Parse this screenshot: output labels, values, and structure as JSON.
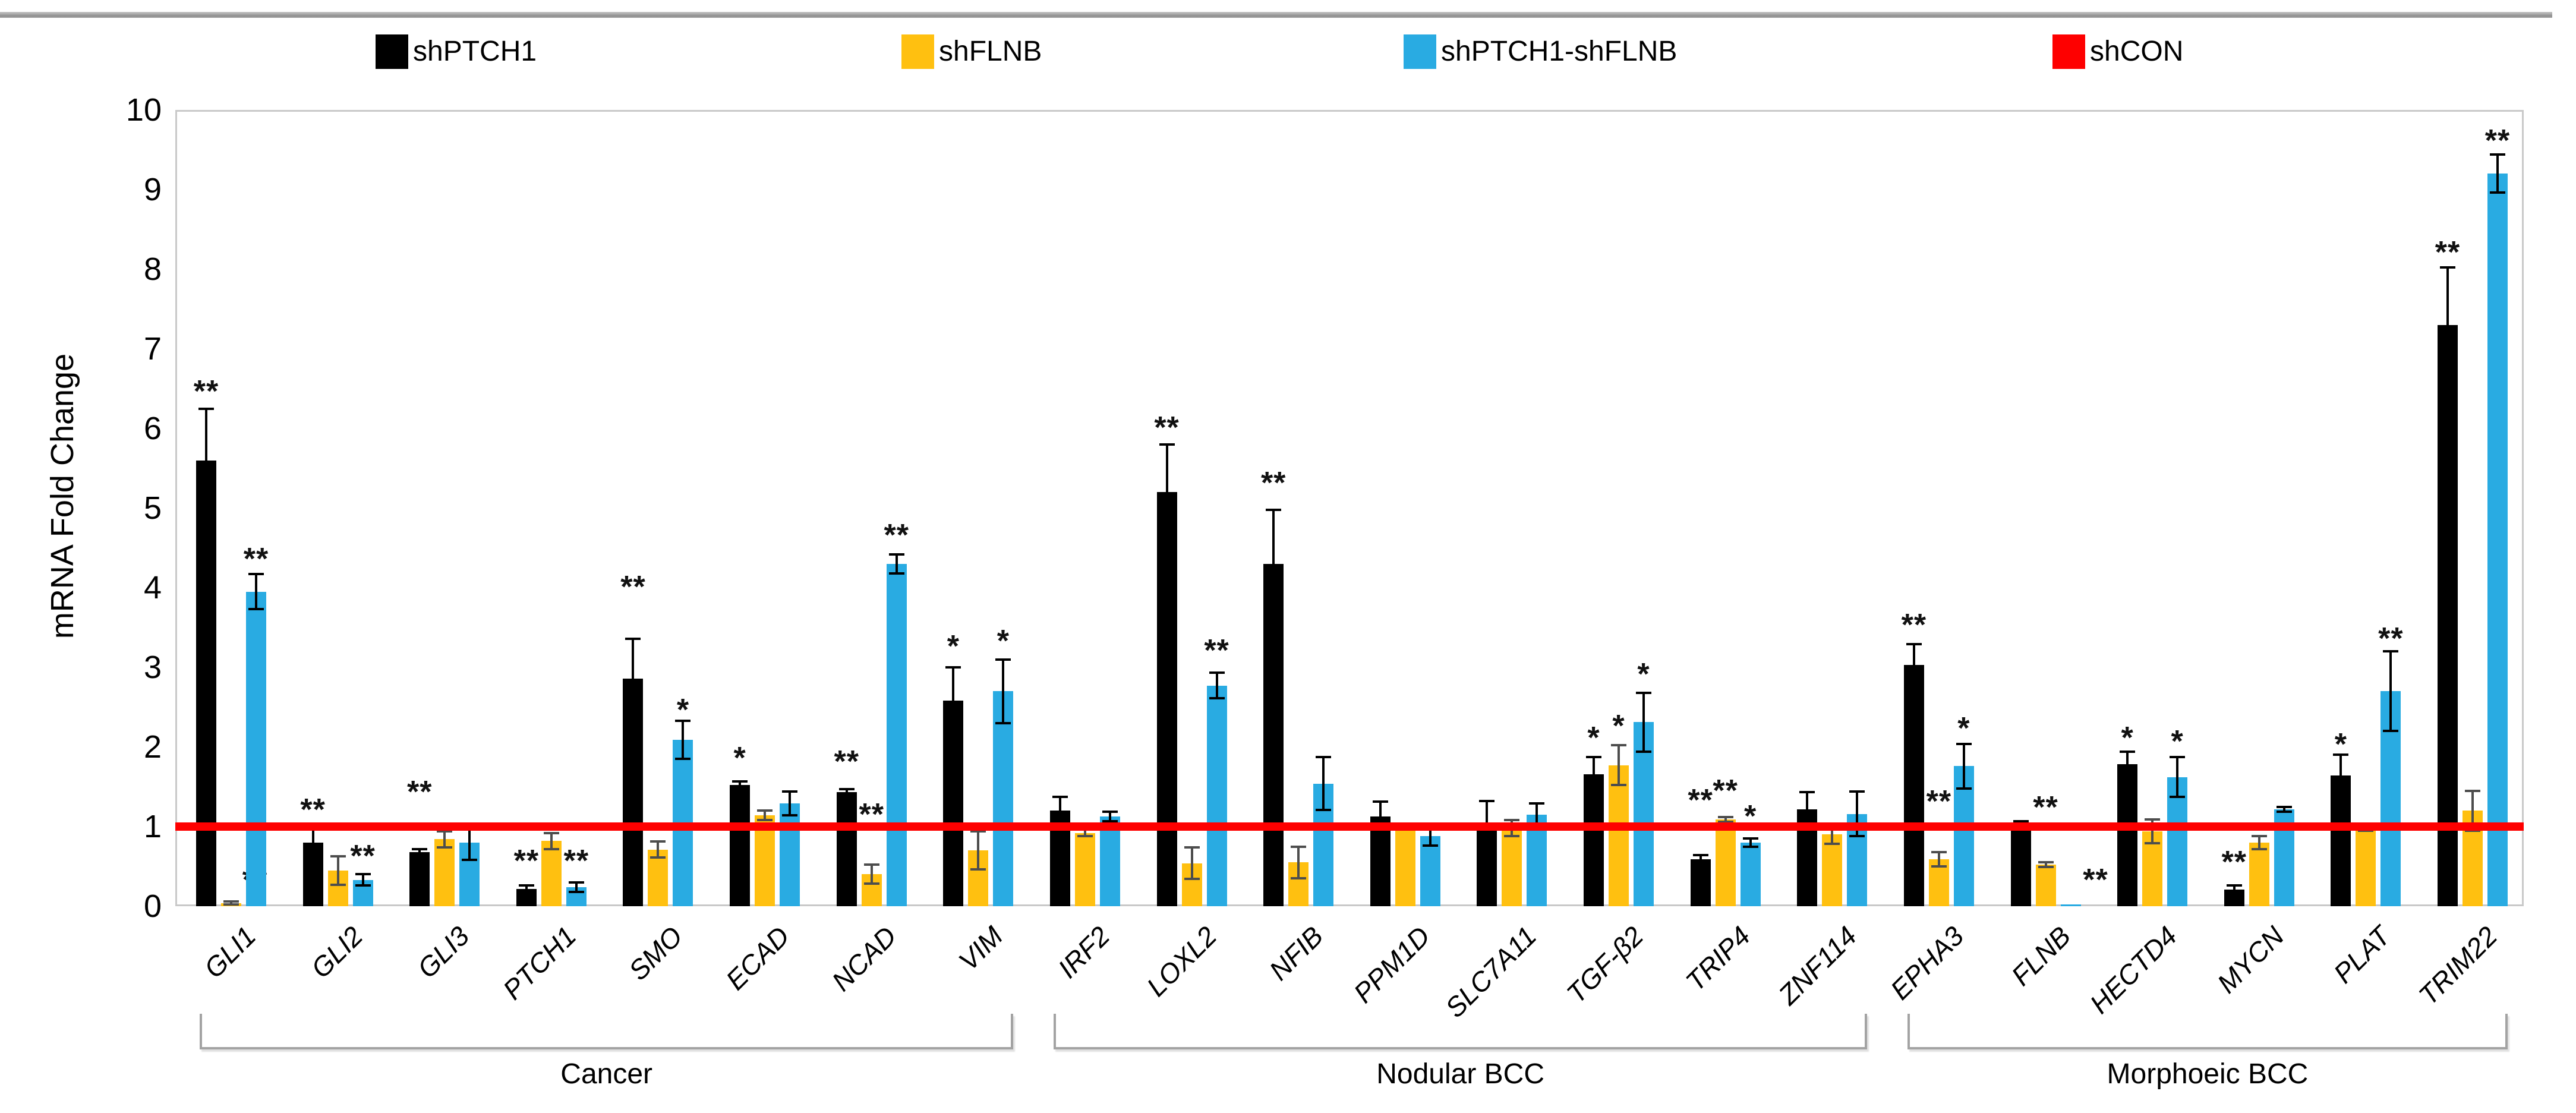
{
  "chart_data": {
    "type": "bar",
    "title": "",
    "xlabel": "",
    "ylabel": "mRNA Fold Change",
    "ylim": [
      0,
      10
    ],
    "yticks": [
      0,
      1,
      2,
      3,
      4,
      5,
      6,
      7,
      8,
      9,
      10
    ],
    "grid": false,
    "legend_position": "top",
    "significance_key": {
      "single": "*",
      "double": "**"
    },
    "reference_line": {
      "name": "shCON",
      "value": 1,
      "color": "#fe0000"
    },
    "series": [
      {
        "name": "shPTCH1",
        "color": "#000000",
        "err_color": "#000000"
      },
      {
        "name": "shFLNB",
        "color": "#ffc010",
        "err_color": "#4d4d4d"
      },
      {
        "name": "shPTCH1-shFLNB",
        "color": "#29abe2",
        "err_color": "#000000"
      }
    ],
    "genes": [
      {
        "name": "GLI1",
        "bars": [
          {
            "v": 5.6,
            "e": 0.65,
            "sig": "**",
            "sy": 6.55
          },
          {
            "v": 0.04,
            "e": 0.02,
            "sig": "**",
            "sy": 0.42,
            "sdx": 40
          },
          {
            "v": 3.95,
            "e": 0.22,
            "sig": "**",
            "sy": 4.45
          }
        ]
      },
      {
        "name": "GLI2",
        "bars": [
          {
            "v": 0.8,
            "e": 0.17,
            "sig": "**",
            "sy": 1.3
          },
          {
            "v": 0.45,
            "e": 0.18,
            "sig": "",
            "sy": 0
          },
          {
            "v": 0.33,
            "e": 0.07,
            "sig": "**",
            "sy": 0.72
          }
        ]
      },
      {
        "name": "GLI3",
        "bars": [
          {
            "v": 0.68,
            "e": 0.04,
            "sig": "**",
            "sy": 1.52
          },
          {
            "v": 0.84,
            "e": 0.1,
            "sig": "",
            "sy": 0
          },
          {
            "v": 0.8,
            "e": 0.22,
            "sig": "",
            "sy": 0
          }
        ]
      },
      {
        "name": "PTCH1",
        "bars": [
          {
            "v": 0.22,
            "e": 0.04,
            "sig": "**",
            "sy": 0.66
          },
          {
            "v": 0.82,
            "e": 0.1,
            "sig": "",
            "sy": 0
          },
          {
            "v": 0.24,
            "e": 0.06,
            "sig": "**",
            "sy": 0.66
          }
        ]
      },
      {
        "name": "SMO",
        "bars": [
          {
            "v": 2.86,
            "e": 0.5,
            "sig": "**",
            "sy": 4.1
          },
          {
            "v": 0.71,
            "e": 0.1,
            "sig": "",
            "sy": 0
          },
          {
            "v": 2.09,
            "e": 0.24,
            "sig": "*",
            "sy": 2.55
          }
        ]
      },
      {
        "name": "ECAD",
        "bars": [
          {
            "v": 1.52,
            "e": 0.05,
            "sig": "*",
            "sy": 1.95
          },
          {
            "v": 1.14,
            "e": 0.06,
            "sig": "",
            "sy": 0
          },
          {
            "v": 1.29,
            "e": 0.15,
            "sig": "",
            "sy": 0
          }
        ]
      },
      {
        "name": "NCAD",
        "bars": [
          {
            "v": 1.43,
            "e": 0.04,
            "sig": "**",
            "sy": 1.9
          },
          {
            "v": 0.4,
            "e": 0.12,
            "sig": "**",
            "sy": 1.24
          },
          {
            "v": 4.3,
            "e": 0.12,
            "sig": "**",
            "sy": 4.75
          }
        ]
      },
      {
        "name": "VIM",
        "bars": [
          {
            "v": 2.58,
            "e": 0.42,
            "sig": "*",
            "sy": 3.35
          },
          {
            "v": 0.7,
            "e": 0.24,
            "sig": "",
            "sy": 0
          },
          {
            "v": 2.7,
            "e": 0.4,
            "sig": "*",
            "sy": 3.42
          }
        ]
      },
      {
        "name": "IRF2",
        "bars": [
          {
            "v": 1.2,
            "e": 0.17,
            "sig": "",
            "sy": 0
          },
          {
            "v": 0.92,
            "e": 0.04,
            "sig": "",
            "sy": 0
          },
          {
            "v": 1.13,
            "e": 0.06,
            "sig": "",
            "sy": 0
          }
        ]
      },
      {
        "name": "LOXL2",
        "bars": [
          {
            "v": 5.2,
            "e": 0.6,
            "sig": "**",
            "sy": 6.1
          },
          {
            "v": 0.54,
            "e": 0.2,
            "sig": "",
            "sy": 0
          },
          {
            "v": 2.77,
            "e": 0.16,
            "sig": "**",
            "sy": 3.3
          }
        ]
      },
      {
        "name": "NFIB",
        "bars": [
          {
            "v": 4.3,
            "e": 0.68,
            "sig": "**",
            "sy": 5.4
          },
          {
            "v": 0.55,
            "e": 0.2,
            "sig": "",
            "sy": 0
          },
          {
            "v": 1.54,
            "e": 0.33,
            "sig": "",
            "sy": 0
          }
        ]
      },
      {
        "name": "PPM1D",
        "bars": [
          {
            "v": 1.13,
            "e": 0.18,
            "sig": "",
            "sy": 0
          },
          {
            "v": 1.0,
            "e": 0.04,
            "sig": "",
            "sy": 0
          },
          {
            "v": 0.88,
            "e": 0.12,
            "sig": "",
            "sy": 0
          }
        ]
      },
      {
        "name": "SLC7A11",
        "bars": [
          {
            "v": 1.02,
            "e": 0.3,
            "sig": "",
            "sy": 0
          },
          {
            "v": 0.98,
            "e": 0.1,
            "sig": "",
            "sy": 0
          },
          {
            "v": 1.15,
            "e": 0.14,
            "sig": "",
            "sy": 0
          }
        ]
      },
      {
        "name": "TGF-β2",
        "bars": [
          {
            "v": 1.66,
            "e": 0.21,
            "sig": "*",
            "sy": 2.2
          },
          {
            "v": 1.77,
            "e": 0.25,
            "sig": "*",
            "sy": 2.35
          },
          {
            "v": 2.31,
            "e": 0.37,
            "sig": "*",
            "sy": 3.0
          }
        ]
      },
      {
        "name": "TRIP4",
        "bars": [
          {
            "v": 0.59,
            "e": 0.05,
            "sig": "**",
            "sy": 1.42
          },
          {
            "v": 1.09,
            "e": 0.03,
            "sig": "**",
            "sy": 1.54
          },
          {
            "v": 0.8,
            "e": 0.05,
            "sig": "*",
            "sy": 1.22
          }
        ]
      },
      {
        "name": "ZNF114",
        "bars": [
          {
            "v": 1.22,
            "e": 0.21,
            "sig": "",
            "sy": 0
          },
          {
            "v": 0.9,
            "e": 0.12,
            "sig": "",
            "sy": 0
          },
          {
            "v": 1.16,
            "e": 0.28,
            "sig": "",
            "sy": 0
          }
        ]
      },
      {
        "name": "EPHA3",
        "bars": [
          {
            "v": 3.03,
            "e": 0.26,
            "sig": "**",
            "sy": 3.62
          },
          {
            "v": 0.59,
            "e": 0.09,
            "sig": "**",
            "sy": 1.4
          },
          {
            "v": 1.76,
            "e": 0.28,
            "sig": "*",
            "sy": 2.32
          }
        ]
      },
      {
        "name": "FLNB",
        "bars": [
          {
            "v": 1.04,
            "e": 0.03,
            "sig": "",
            "sy": 0
          },
          {
            "v": 0.52,
            "e": 0.03,
            "sig": "**",
            "sy": 1.33
          },
          {
            "v": 0.02,
            "e": 0,
            "sig": "**",
            "sy": 0.42,
            "sdx": 42
          }
        ]
      },
      {
        "name": "HECTD4",
        "bars": [
          {
            "v": 1.78,
            "e": 0.16,
            "sig": "*",
            "sy": 2.2
          },
          {
            "v": 0.94,
            "e": 0.15,
            "sig": "",
            "sy": 0
          },
          {
            "v": 1.62,
            "e": 0.25,
            "sig": "*",
            "sy": 2.16
          }
        ]
      },
      {
        "name": "MYCN",
        "bars": [
          {
            "v": 0.21,
            "e": 0.05,
            "sig": "**",
            "sy": 0.64
          },
          {
            "v": 0.8,
            "e": 0.08,
            "sig": "",
            "sy": 0
          },
          {
            "v": 1.22,
            "e": 0.03,
            "sig": "",
            "sy": 0
          }
        ]
      },
      {
        "name": "PLAT",
        "bars": [
          {
            "v": 1.64,
            "e": 0.26,
            "sig": "*",
            "sy": 2.12
          },
          {
            "v": 0.97,
            "e": 0.02,
            "sig": "",
            "sy": 0
          },
          {
            "v": 2.7,
            "e": 0.5,
            "sig": "**",
            "sy": 3.45
          }
        ]
      },
      {
        "name": "TRIM22",
        "bars": [
          {
            "v": 7.3,
            "e": 0.72,
            "sig": "**",
            "sy": 8.3
          },
          {
            "v": 1.2,
            "e": 0.25,
            "sig": "",
            "sy": 0
          },
          {
            "v": 9.2,
            "e": 0.24,
            "sig": "**",
            "sy": 9.7
          }
        ]
      }
    ],
    "groups": [
      {
        "label": "Cancer",
        "from": 0,
        "to": 7
      },
      {
        "label": "Nodular BCC",
        "from": 8,
        "to": 15
      },
      {
        "label": "Morphoeic BCC",
        "from": 16,
        "to": 21
      }
    ]
  },
  "legend": {
    "entries": [
      {
        "label": "shPTCH1",
        "color": "#000000",
        "x": 632
      },
      {
        "label": "shFLNB",
        "color": "#ffc010",
        "x": 1517
      },
      {
        "label": "shPTCH1-shFLNB",
        "color": "#29abe2",
        "x": 2362
      },
      {
        "label": "shCON",
        "color": "#fe0000",
        "x": 3454
      }
    ]
  }
}
